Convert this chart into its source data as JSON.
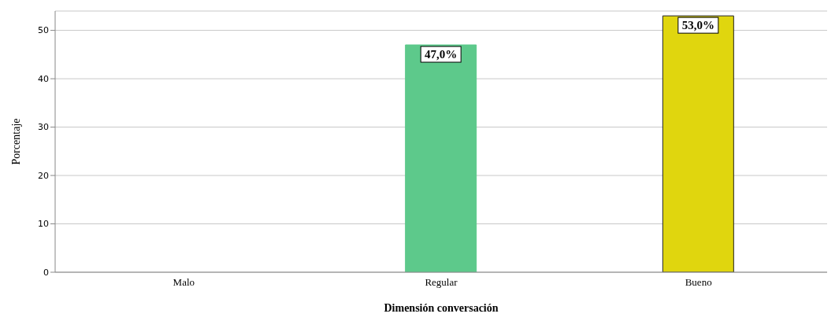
{
  "chart_data": {
    "type": "bar",
    "xlabel": "Dimensión conversación",
    "ylabel": "Porcentaje",
    "categories": [
      "Malo",
      "Regular",
      "Bueno"
    ],
    "values": [
      0,
      47,
      53
    ],
    "colors": [
      "#5dc98b",
      "#5dc98b",
      "#e0d60e"
    ],
    "value_labels": [
      null,
      "47,0%",
      "53,0%"
    ],
    "ylim": [
      0,
      54
    ],
    "yticks": [
      0,
      10,
      20,
      30,
      40,
      50
    ],
    "grid": "y",
    "legend": false
  }
}
